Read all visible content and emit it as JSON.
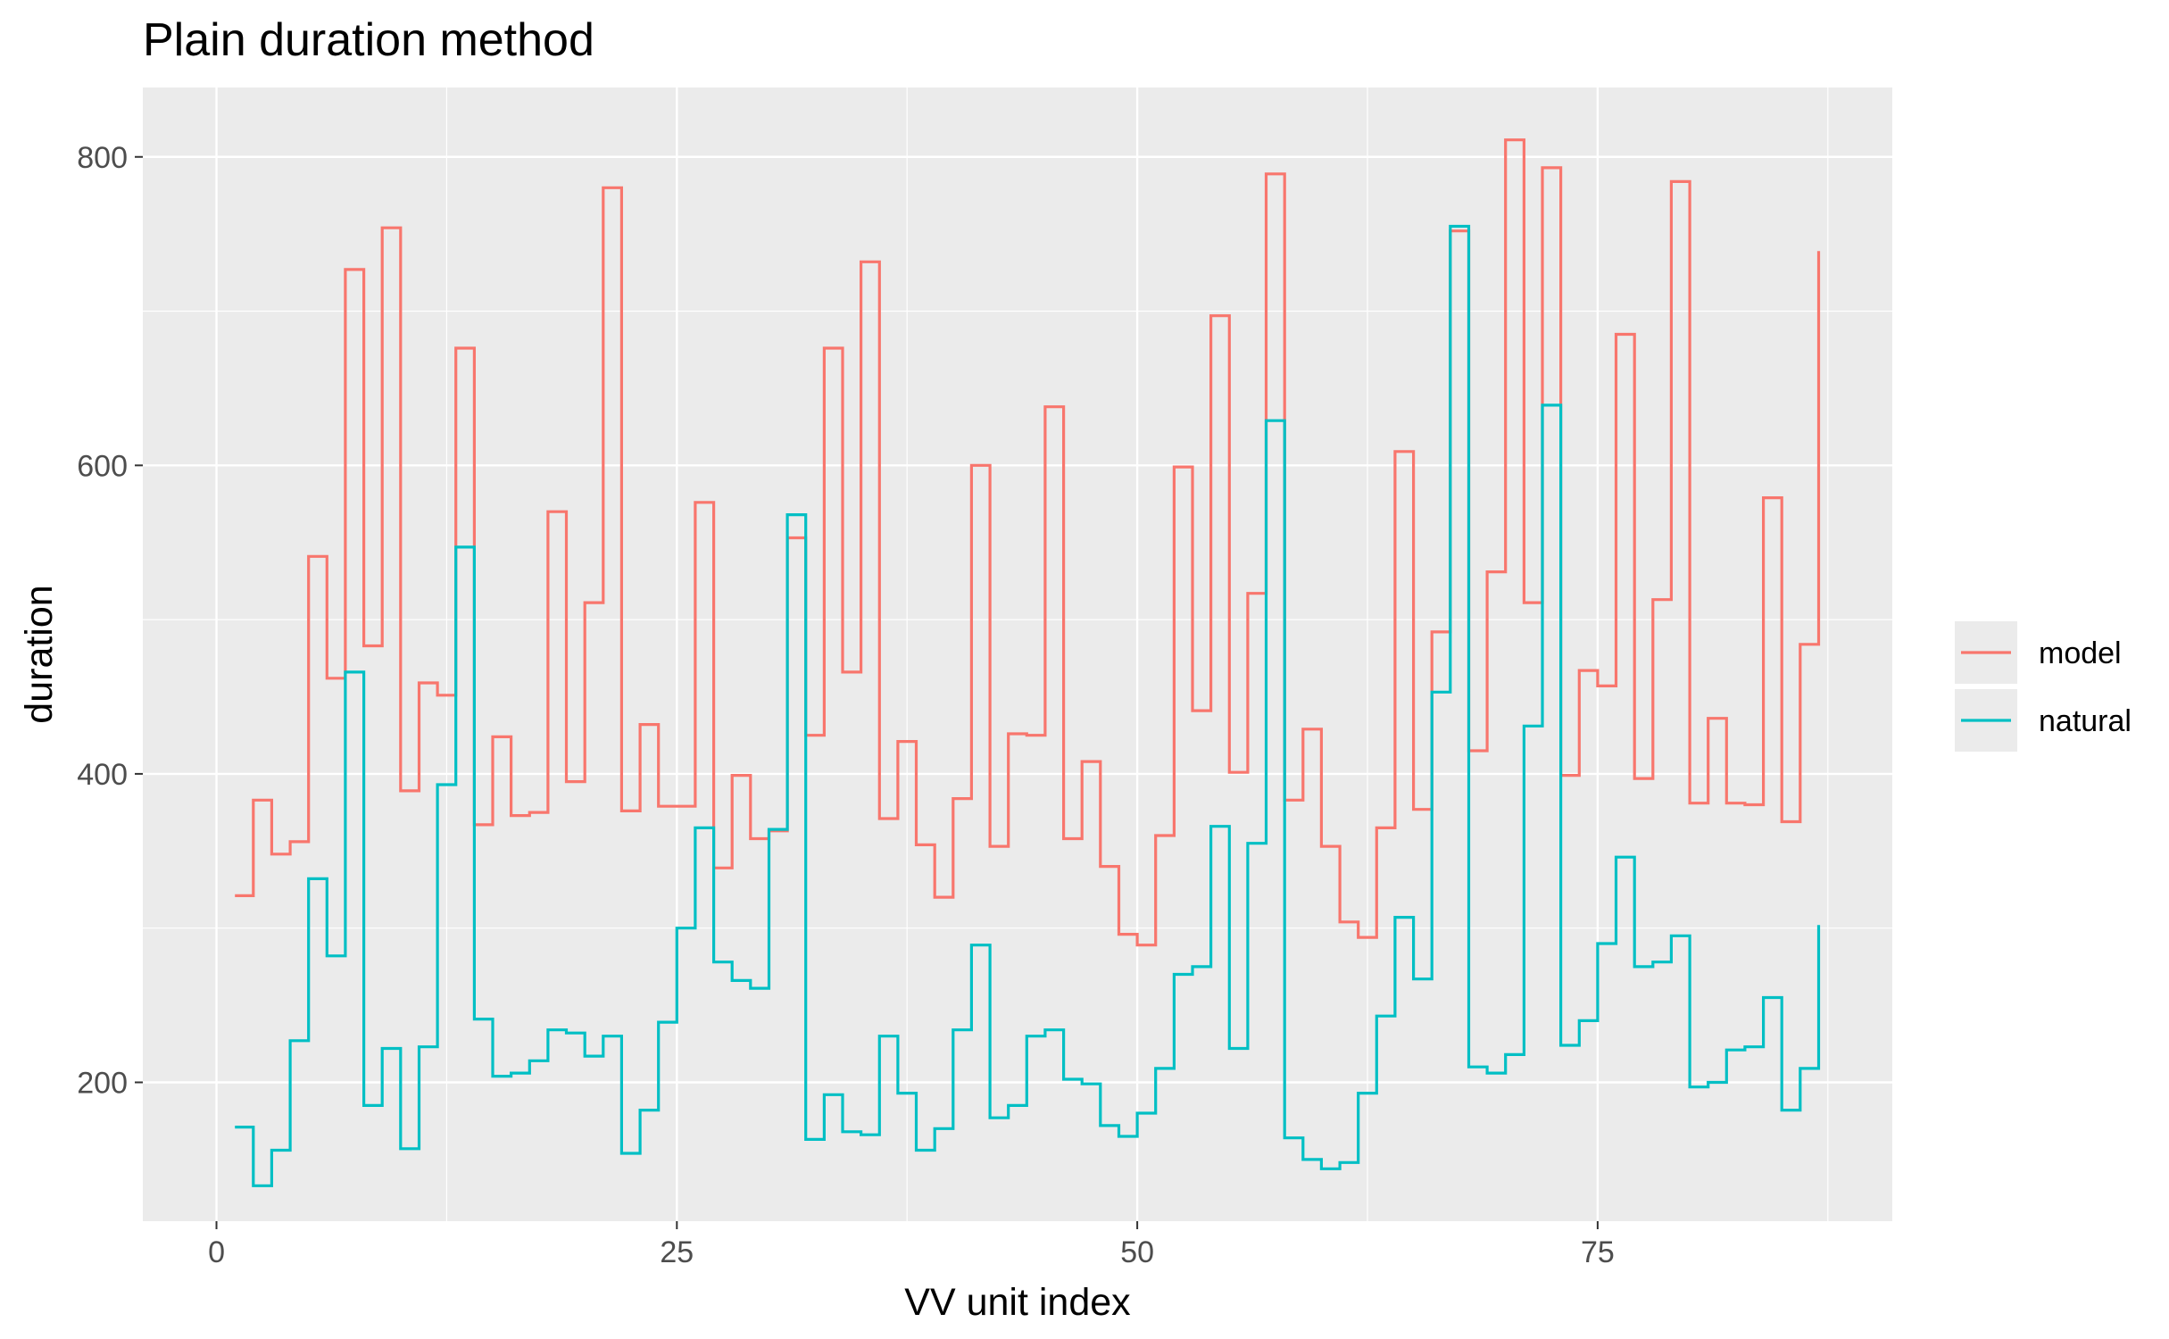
{
  "chart_data": {
    "type": "line",
    "step": true,
    "title": "Plain duration method",
    "xlabel": "VV unit index",
    "ylabel": "duration",
    "xlim": [
      -4,
      91
    ],
    "ylim": [
      110,
      845
    ],
    "x_ticks": [
      0,
      25,
      50,
      75
    ],
    "y_ticks": [
      200,
      400,
      600,
      800
    ],
    "grid": true,
    "legend_position": "right",
    "x": [
      1,
      2,
      3,
      4,
      5,
      6,
      7,
      8,
      9,
      10,
      11,
      12,
      13,
      14,
      15,
      16,
      17,
      18,
      19,
      20,
      21,
      22,
      23,
      24,
      25,
      26,
      27,
      28,
      29,
      30,
      31,
      32,
      33,
      34,
      35,
      36,
      37,
      38,
      39,
      40,
      41,
      42,
      43,
      44,
      45,
      46,
      47,
      48,
      49,
      50,
      51,
      52,
      53,
      54,
      55,
      56,
      57,
      58,
      59,
      60,
      61,
      62,
      63,
      64,
      65,
      66,
      67,
      68,
      69,
      70,
      71,
      72,
      73,
      74,
      75,
      76,
      77,
      78,
      79,
      80,
      81,
      82,
      83,
      84,
      85,
      86,
      87
    ],
    "series": [
      {
        "name": "model",
        "color": "#F8766D",
        "values": [
          321,
          383,
          348,
          356,
          541,
          462,
          727,
          483,
          754,
          389,
          459,
          451,
          676,
          367,
          424,
          373,
          375,
          570,
          395,
          511,
          780,
          376,
          432,
          379,
          379,
          576,
          339,
          399,
          358,
          363,
          553,
          425,
          676,
          466,
          732,
          371,
          421,
          354,
          320,
          384,
          600,
          353,
          426,
          425,
          638,
          358,
          408,
          340,
          296,
          289,
          360,
          599,
          441,
          697,
          401,
          517,
          789,
          383,
          429,
          353,
          304,
          294,
          365,
          609,
          377,
          492,
          752,
          415,
          531,
          811,
          511,
          793,
          399,
          467,
          457,
          685,
          397,
          513,
          784,
          381,
          436,
          381,
          380,
          579,
          369,
          484,
          739
        ]
      },
      {
        "name": "natural",
        "color": "#00BFC4",
        "values": [
          171,
          133,
          156,
          227,
          332,
          282,
          466,
          185,
          222,
          157,
          223,
          393,
          547,
          241,
          204,
          206,
          214,
          234,
          232,
          217,
          230,
          154,
          182,
          239,
          300,
          365,
          278,
          266,
          261,
          364,
          568,
          163,
          192,
          168,
          166,
          230,
          193,
          156,
          170,
          234,
          289,
          177,
          185,
          230,
          234,
          202,
          199,
          172,
          165,
          180,
          209,
          270,
          275,
          366,
          222,
          355,
          629,
          164,
          150,
          144,
          148,
          193,
          243,
          307,
          267,
          453,
          755,
          210,
          206,
          218,
          431,
          639,
          224,
          240,
          290,
          346,
          275,
          278,
          295,
          197,
          200,
          221,
          223,
          255,
          182,
          209,
          302
        ]
      }
    ]
  }
}
